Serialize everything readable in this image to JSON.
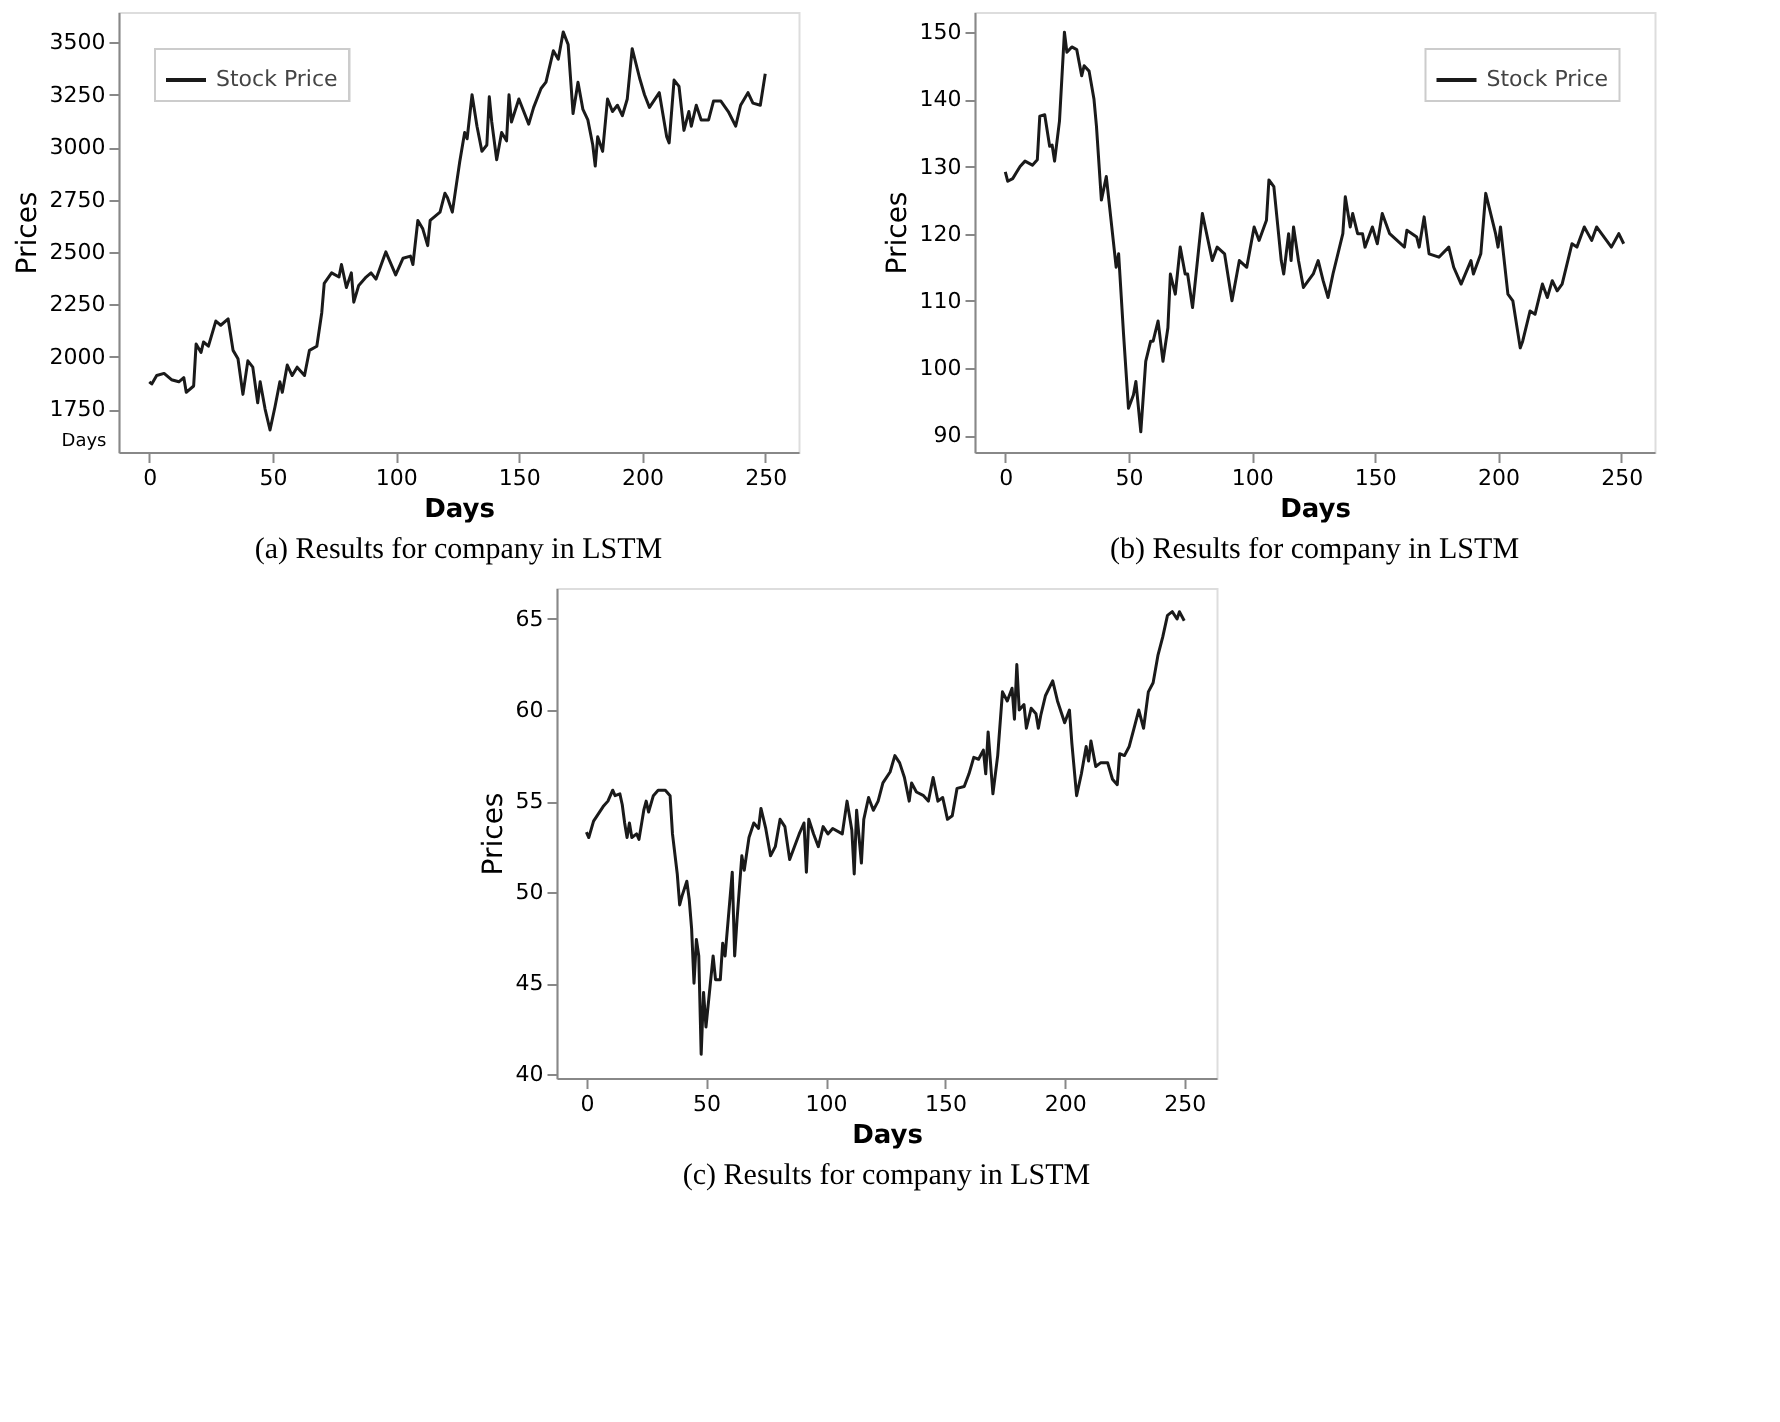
{
  "chart_data": [
    {
      "type": "line",
      "title": "(a) Results for company in LSTM",
      "xlabel": "Days",
      "ylabel": "Prices",
      "legend": "top left",
      "grid": false,
      "line_style": "solid",
      "marker": "none",
      "annotations": [
        "Days"
      ],
      "xlim": [
        -12.5,
        263.5
      ],
      "xticks": [
        0,
        50,
        100,
        150,
        200,
        250
      ],
      "ylim": [
        1545,
        3645
      ],
      "yticks": [
        1750,
        2000,
        2250,
        2500,
        2750,
        3000,
        3250,
        3500
      ],
      "x": [
        0,
        1,
        3,
        6,
        9,
        12,
        14,
        15,
        18,
        19,
        21,
        22,
        24,
        27,
        29,
        32,
        34,
        36,
        38,
        40,
        42,
        44,
        45,
        47,
        49,
        51,
        53,
        54,
        56,
        58,
        60,
        63,
        65,
        68,
        70,
        71,
        74,
        77,
        78,
        80,
        82,
        83,
        85,
        88,
        90,
        92,
        96,
        100,
        103,
        106,
        107,
        109,
        111,
        113,
        114,
        118,
        120,
        121,
        123,
        126,
        128,
        129,
        131,
        133,
        135,
        137,
        138,
        139,
        141,
        143,
        145,
        146,
        147,
        150,
        154,
        156,
        159,
        161,
        164,
        166,
        168,
        170,
        172,
        174,
        176,
        178,
        180,
        181,
        182,
        184,
        186,
        188,
        190,
        192,
        194,
        196,
        199,
        201,
        203,
        207,
        210,
        211,
        213,
        215,
        217,
        219,
        220,
        222,
        224,
        227,
        229,
        232,
        235,
        238,
        240,
        243,
        245,
        248,
        250
      ],
      "series": [
        {
          "name": "Stock Price",
          "color": "#1a1a1a",
          "values": [
            1880,
            1870,
            1910,
            1920,
            1890,
            1880,
            1900,
            1830,
            1860,
            2060,
            2020,
            2070,
            2050,
            2170,
            2150,
            2180,
            2030,
            1990,
            1820,
            1980,
            1950,
            1780,
            1880,
            1750,
            1650,
            1760,
            1880,
            1830,
            1960,
            1910,
            1950,
            1910,
            2030,
            2050,
            2210,
            2350,
            2400,
            2380,
            2440,
            2330,
            2400,
            2260,
            2340,
            2380,
            2400,
            2370,
            2500,
            2390,
            2470,
            2480,
            2440,
            2650,
            2610,
            2530,
            2650,
            2690,
            2780,
            2760,
            2690,
            2930,
            3070,
            3040,
            3250,
            3100,
            2980,
            3010,
            3240,
            3120,
            2940,
            3070,
            3030,
            3250,
            3120,
            3230,
            3110,
            3190,
            3280,
            3310,
            3460,
            3420,
            3550,
            3490,
            3160,
            3310,
            3180,
            3130,
            3010,
            2910,
            3050,
            2980,
            3230,
            3170,
            3200,
            3150,
            3230,
            3470,
            3330,
            3250,
            3190,
            3260,
            3050,
            3020,
            3320,
            3290,
            3080,
            3170,
            3100,
            3200,
            3130,
            3130,
            3220,
            3220,
            3170,
            3100,
            3200,
            3260,
            3210,
            3200,
            3350
          ]
        }
      ]
    },
    {
      "type": "line",
      "title": "(b) Results for company in LSTM",
      "xlabel": "Days",
      "ylabel": "Prices",
      "legend": "top right",
      "grid": false,
      "line_style": "solid",
      "marker": "none",
      "xlim": [
        -12.5,
        263.5
      ],
      "xticks": [
        0,
        50,
        100,
        150,
        200,
        250
      ],
      "ylim": [
        87.5,
        153
      ],
      "yticks": [
        90,
        100,
        110,
        120,
        130,
        140,
        150
      ],
      "x": [
        0,
        1,
        3,
        6,
        8,
        11,
        13,
        14,
        16,
        18,
        19,
        20,
        22,
        24,
        25,
        27,
        29,
        31,
        32,
        34,
        36,
        37,
        39,
        41,
        45,
        46,
        48,
        50,
        52,
        53,
        55,
        57,
        59,
        60,
        62,
        64,
        66,
        67,
        69,
        71,
        73,
        74,
        76,
        80,
        84,
        86,
        89,
        92,
        95,
        98,
        101,
        103,
        106,
        107,
        109,
        112,
        113,
        115,
        116,
        117,
        119,
        121,
        125,
        127,
        129,
        131,
        133,
        135,
        137,
        138,
        140,
        141,
        143,
        145,
        146,
        149,
        151,
        153,
        156,
        159,
        162,
        163,
        167,
        168,
        170,
        172,
        176,
        180,
        182,
        185,
        189,
        190,
        193,
        195,
        199,
        200,
        201,
        204,
        206,
        209,
        210,
        213,
        215,
        218,
        220,
        222,
        224,
        226,
        230,
        232,
        235,
        238,
        240,
        246,
        249,
        251
      ],
      "series": [
        {
          "name": "Stock Price",
          "color": "#1a1a1a",
          "values": [
            129.2,
            127.8,
            128.2,
            130.0,
            130.8,
            130.2,
            131.0,
            137.5,
            137.7,
            133.0,
            133.2,
            130.8,
            136.8,
            150.0,
            147.0,
            147.8,
            147.4,
            143.5,
            145.0,
            144.2,
            140.0,
            136.0,
            125.0,
            128.5,
            115.0,
            117.0,
            105.0,
            94.0,
            96.0,
            98.0,
            90.5,
            101.0,
            104.0,
            104.0,
            107.0,
            101.0,
            106.0,
            114.0,
            111.0,
            118.0,
            114.0,
            114.0,
            109.0,
            123.0,
            116.0,
            118.0,
            117.0,
            110.0,
            116.0,
            115.0,
            121.0,
            119.0,
            122.0,
            128.0,
            127.0,
            116.0,
            114.0,
            120.0,
            116.0,
            121.0,
            116.0,
            112.0,
            114.0,
            116.0,
            113.0,
            110.5,
            114.0,
            117.0,
            120.0,
            125.5,
            121.0,
            123.0,
            120.0,
            120.0,
            118.0,
            121.0,
            118.5,
            123.0,
            120.0,
            119.0,
            118.0,
            120.5,
            119.5,
            118.0,
            122.5,
            117.0,
            116.5,
            118.0,
            115.0,
            112.5,
            116.0,
            114.0,
            117.0,
            126.0,
            120.0,
            118.0,
            121.0,
            111.0,
            110.0,
            103.0,
            104.0,
            108.5,
            108.0,
            112.5,
            110.5,
            113.0,
            111.5,
            112.5,
            118.5,
            118.0,
            121.0,
            119.0,
            121.0,
            118.0,
            120.0,
            118.5
          ]
        }
      ]
    },
    {
      "type": "line",
      "title": "(c) Results for company in LSTM",
      "xlabel": "Days",
      "ylabel": "Prices",
      "legend": "top left",
      "grid": false,
      "line_style": "solid",
      "marker": "none",
      "xlim": [
        -12.5,
        263.5
      ],
      "xticks": [
        0,
        50,
        100,
        150,
        200,
        250
      ],
      "ylim": [
        39.8,
        66.7
      ],
      "yticks": [
        40,
        45,
        50,
        55,
        60,
        65
      ],
      "x": [
        0,
        1,
        3,
        5,
        7,
        9,
        11,
        12,
        14,
        15,
        16,
        17,
        18,
        19,
        21,
        22,
        24,
        25,
        26,
        28,
        30,
        33,
        35,
        36,
        38,
        39,
        40,
        42,
        43,
        44,
        45,
        46,
        47,
        48,
        49,
        50,
        52,
        53,
        54,
        56,
        57,
        58,
        61,
        62,
        63,
        65,
        66,
        68,
        70,
        72,
        73,
        75,
        77,
        79,
        81,
        83,
        85,
        87,
        89,
        91,
        92,
        93,
        95,
        97,
        99,
        101,
        103,
        107,
        109,
        111,
        112,
        113,
        115,
        116,
        118,
        120,
        122,
        124,
        127,
        129,
        131,
        133,
        135,
        136,
        138,
        141,
        143,
        145,
        147,
        149,
        151,
        153,
        155,
        158,
        160,
        162,
        164,
        166,
        167,
        168,
        170,
        172,
        174,
        176,
        178,
        179,
        180,
        181,
        183,
        184,
        186,
        188,
        189,
        190,
        192,
        195,
        197,
        199,
        200,
        202,
        203,
        205,
        207,
        209,
        210,
        211,
        213,
        215,
        218,
        220,
        222,
        223,
        225,
        227,
        229,
        231,
        233,
        235,
        237,
        239,
        241,
        243,
        245,
        247,
        248,
        250
      ],
      "series": [
        {
          "name": "Stock Price",
          "color": "#1a1a1a",
          "values": [
            53.3,
            53.0,
            53.9,
            54.3,
            54.7,
            55.0,
            55.6,
            55.3,
            55.4,
            54.8,
            53.8,
            53.0,
            53.8,
            53.0,
            53.2,
            52.9,
            54.5,
            55.0,
            54.4,
            55.3,
            55.6,
            55.6,
            55.3,
            53.2,
            51.0,
            49.3,
            49.8,
            50.6,
            49.6,
            48.0,
            45.0,
            47.4,
            46.5,
            41.1,
            44.5,
            42.6,
            45.2,
            46.5,
            45.2,
            45.2,
            47.2,
            46.5,
            51.1,
            46.5,
            48.5,
            52.0,
            51.2,
            53.0,
            53.8,
            53.5,
            54.6,
            53.5,
            52.0,
            52.5,
            54.0,
            53.6,
            51.8,
            52.5,
            53.2,
            53.8,
            51.1,
            54.0,
            53.2,
            52.5,
            53.6,
            53.2,
            53.5,
            53.2,
            55.0,
            53.4,
            51.0,
            54.5,
            51.6,
            54.0,
            55.2,
            54.5,
            55.0,
            56.0,
            56.6,
            57.5,
            57.1,
            56.3,
            55.0,
            56.0,
            55.5,
            55.3,
            55.0,
            56.3,
            55.0,
            55.2,
            54.0,
            54.2,
            55.7,
            55.8,
            56.5,
            57.4,
            57.3,
            57.8,
            56.5,
            58.8,
            55.4,
            57.5,
            61.0,
            60.5,
            61.2,
            59.5,
            62.5,
            60.0,
            60.3,
            59.0,
            60.1,
            59.8,
            59.0,
            59.7,
            60.8,
            61.6,
            60.5,
            59.7,
            59.3,
            60.0,
            58.2,
            55.3,
            56.5,
            58.0,
            57.2,
            58.3,
            56.9,
            57.1,
            57.1,
            56.2,
            55.9,
            57.6,
            57.5,
            58.0,
            59.0,
            60.0,
            59.0,
            61.0,
            61.5,
            63.0,
            64.0,
            65.2,
            65.4,
            65.0,
            65.4,
            64.9
          ]
        }
      ]
    }
  ]
}
